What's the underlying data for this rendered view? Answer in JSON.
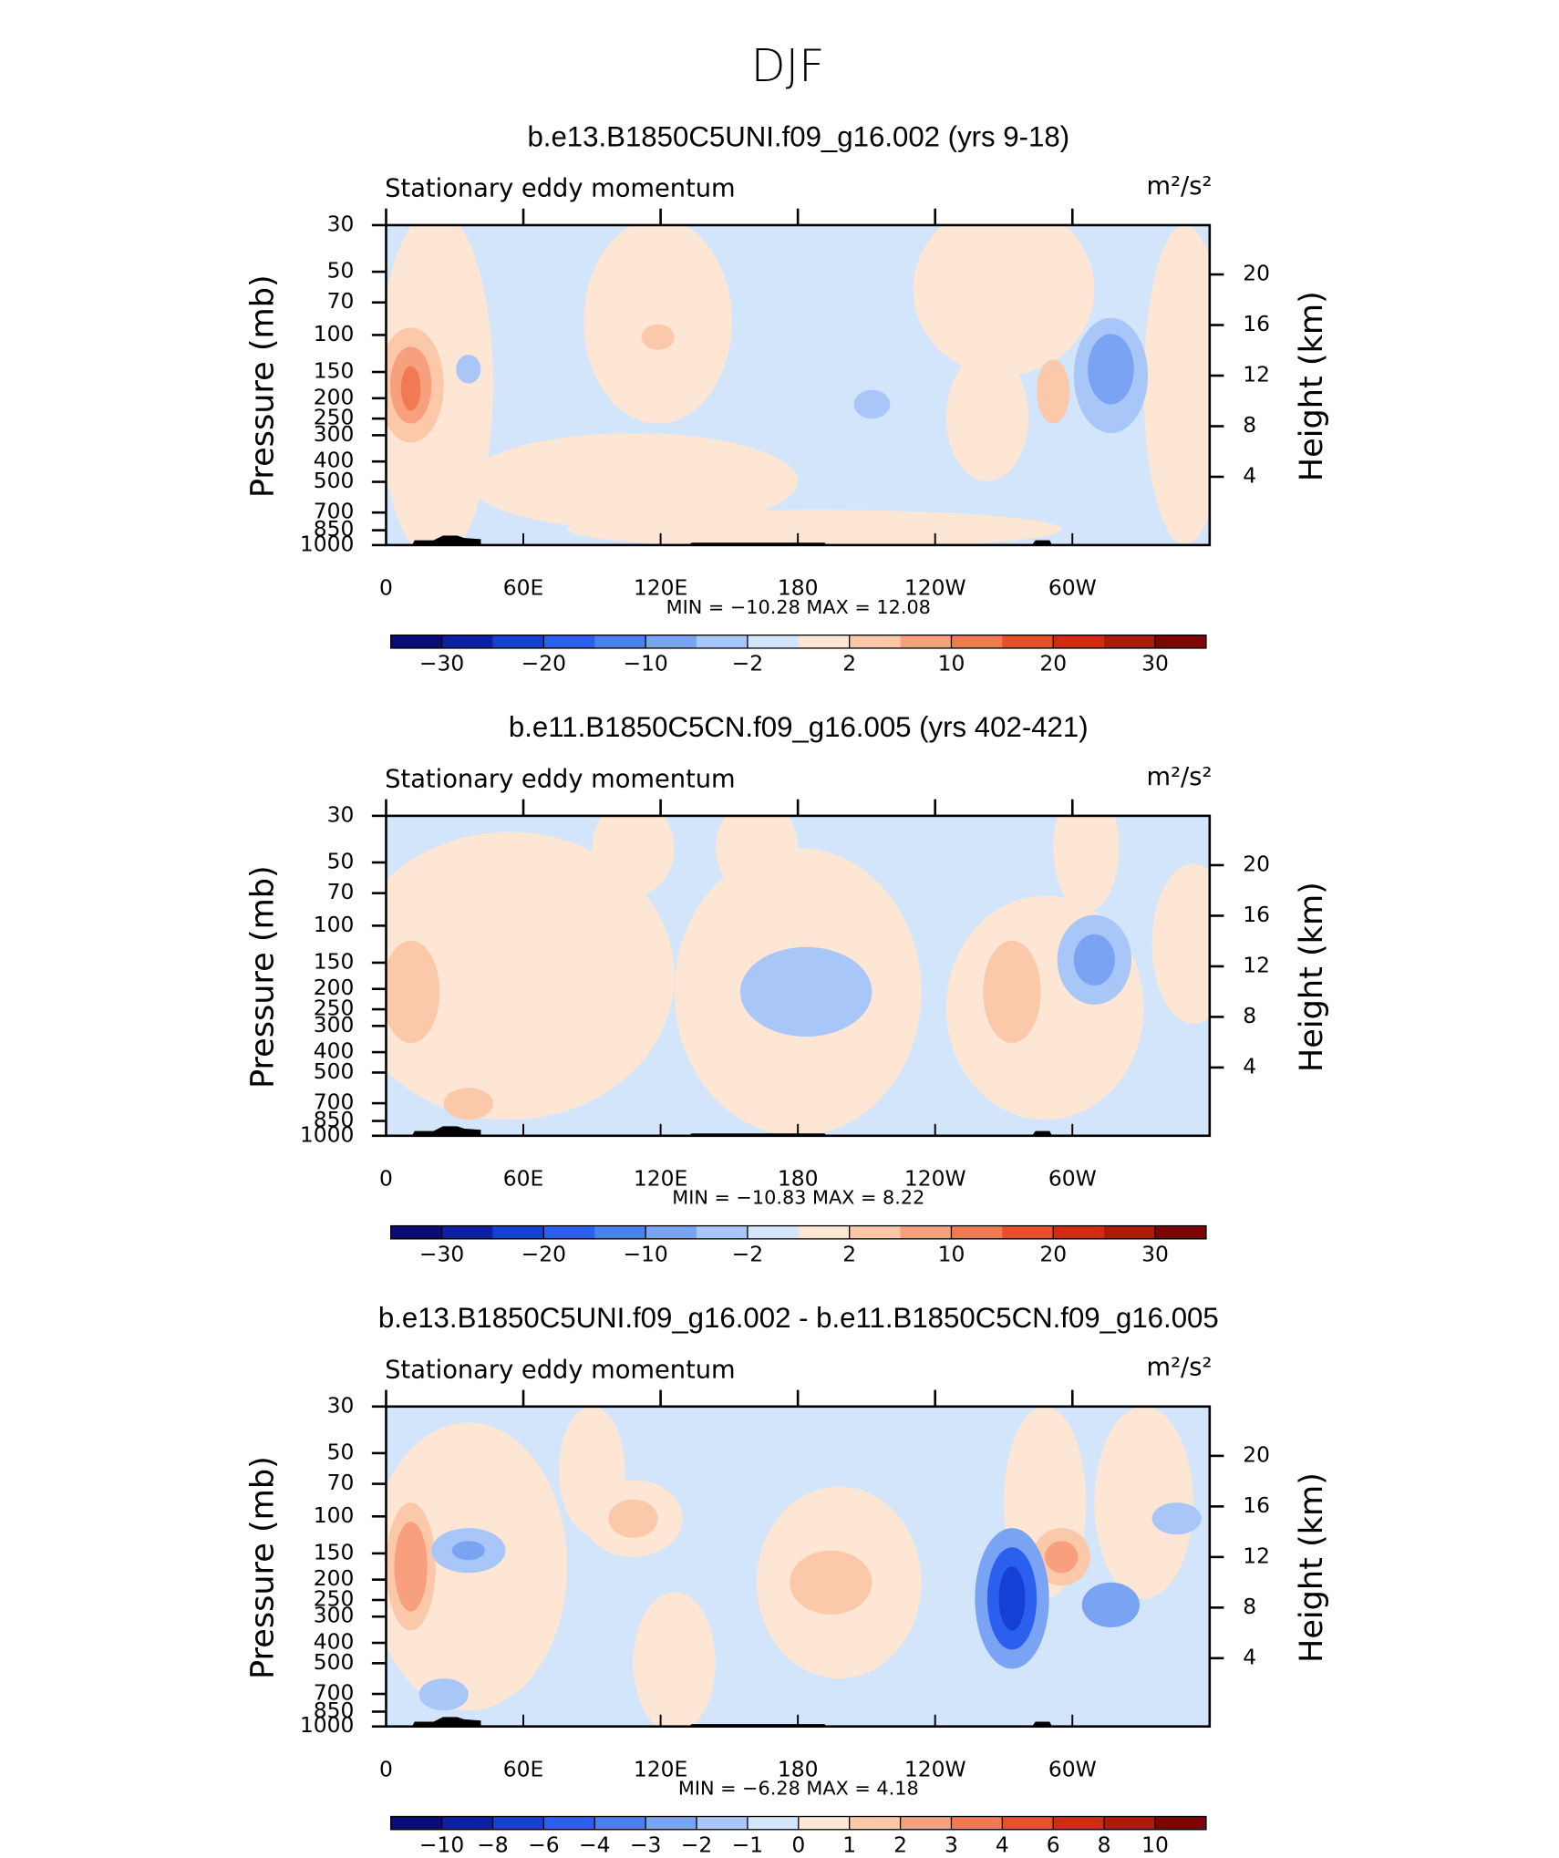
{
  "title": "DJF",
  "chart_data": [
    {
      "type": "contour",
      "title": "b.e13.B1850C5UNI.f09_g16.002 (yrs 9-18)",
      "subtitle": "Stationary eddy momentum",
      "units": "m²/s²",
      "ylabel": "Pressure (mb)",
      "y2label": "Height (km)",
      "xlim": [
        0,
        360
      ],
      "xticks": [
        0,
        {
          "value": 60,
          "label": "60E"
        },
        {
          "value": 120,
          "label": "120E"
        },
        180,
        {
          "value": 240,
          "label": "120W"
        },
        {
          "value": 300,
          "label": "60W"
        }
      ],
      "ylim": [
        1000,
        30
      ],
      "yscale": "log",
      "yticks": [
        30,
        50,
        70,
        100,
        150,
        200,
        250,
        300,
        400,
        500,
        700,
        850,
        1000
      ],
      "y2lim": [
        -1.4,
        23.9
      ],
      "y2ticks": [
        4,
        8,
        12,
        16,
        20
      ],
      "stats": "MIN =  −10.28   MAX =    12.08",
      "colorbar": {
        "colors": [
          "#0a0a78",
          "#0c1fa5",
          "#1540d6",
          "#2a5fef",
          "#4a80f0",
          "#7aa3f3",
          "#a9c6f8",
          "#d3e5fb",
          "#fde6d3",
          "#fcc8aa",
          "#f8a07e",
          "#f27a53",
          "#ea4e2a",
          "#d52a12",
          "#ad1a0a",
          "#7e0404"
        ],
        "labels": [
          {
            "value": -30,
            "label": "−30"
          },
          {
            "value": -20,
            "label": "−20"
          },
          {
            "value": -10,
            "label": "−10"
          },
          {
            "value": -2,
            "label": "−2"
          },
          2,
          10,
          20,
          30
        ]
      }
    },
    {
      "type": "contour",
      "title": "b.e11.B1850C5CN.f09_g16.005 (yrs 402-421)",
      "subtitle": "Stationary eddy momentum",
      "units": "m²/s²",
      "ylabel": "Pressure (mb)",
      "y2label": "Height (km)",
      "xlim": [
        0,
        360
      ],
      "xticks": [
        0,
        {
          "value": 60,
          "label": "60E"
        },
        {
          "value": 120,
          "label": "120E"
        },
        180,
        {
          "value": 240,
          "label": "120W"
        },
        {
          "value": 300,
          "label": "60W"
        }
      ],
      "ylim": [
        1000,
        30
      ],
      "yscale": "log",
      "yticks": [
        30,
        50,
        70,
        100,
        150,
        200,
        250,
        300,
        400,
        500,
        700,
        850,
        1000
      ],
      "y2lim": [
        -1.4,
        23.9
      ],
      "y2ticks": [
        4,
        8,
        12,
        16,
        20
      ],
      "stats": "MIN =  −10.83   MAX =     8.22",
      "colorbar": {
        "colors": [
          "#0a0a78",
          "#0c1fa5",
          "#1540d6",
          "#2a5fef",
          "#4a80f0",
          "#7aa3f3",
          "#a9c6f8",
          "#d3e5fb",
          "#fde6d3",
          "#fcc8aa",
          "#f8a07e",
          "#f27a53",
          "#ea4e2a",
          "#d52a12",
          "#ad1a0a",
          "#7e0404"
        ],
        "labels": [
          {
            "value": -30,
            "label": "−30"
          },
          {
            "value": -20,
            "label": "−20"
          },
          {
            "value": -10,
            "label": "−10"
          },
          {
            "value": -2,
            "label": "−2"
          },
          2,
          10,
          20,
          30
        ]
      }
    },
    {
      "type": "contour",
      "title": "b.e13.B1850C5UNI.f09_g16.002 - b.e11.B1850C5CN.f09_g16.005",
      "subtitle": "Stationary eddy momentum",
      "units": "m²/s²",
      "ylabel": "Pressure (mb)",
      "y2label": "Height (km)",
      "xlim": [
        0,
        360
      ],
      "xticks": [
        0,
        {
          "value": 60,
          "label": "60E"
        },
        {
          "value": 120,
          "label": "120E"
        },
        180,
        {
          "value": 240,
          "label": "120W"
        },
        {
          "value": 300,
          "label": "60W"
        }
      ],
      "ylim": [
        1000,
        30
      ],
      "yscale": "log",
      "yticks": [
        30,
        50,
        70,
        100,
        150,
        200,
        250,
        300,
        400,
        500,
        700,
        850,
        1000
      ],
      "y2lim": [
        -1.4,
        23.9
      ],
      "y2ticks": [
        4,
        8,
        12,
        16,
        20
      ],
      "stats": "MIN =   −6.28   MAX =    4.18",
      "colorbar": {
        "colors": [
          "#0a0a78",
          "#0c1fa5",
          "#1540d6",
          "#2a5fef",
          "#4a80f0",
          "#7aa3f3",
          "#a9c6f8",
          "#d3e5fb",
          "#fde6d3",
          "#fcc8aa",
          "#f8a07e",
          "#f27a53",
          "#ea4e2a",
          "#d52a12",
          "#ad1a0a",
          "#7e0404"
        ],
        "labels": [
          {
            "value": -10,
            "label": "−10"
          },
          {
            "value": -8,
            "label": "−8"
          },
          {
            "value": -6,
            "label": "−6"
          },
          {
            "value": -4,
            "label": "−4"
          },
          {
            "value": -3,
            "label": "−3"
          },
          {
            "value": -2,
            "label": "−2"
          },
          {
            "value": -1,
            "label": "−1"
          },
          0,
          1,
          2,
          3,
          4,
          6,
          8,
          10
        ]
      }
    }
  ]
}
